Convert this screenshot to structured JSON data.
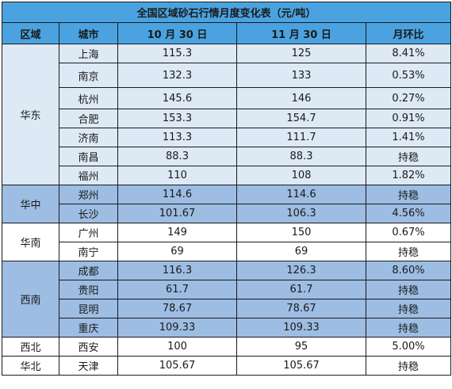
{
  "title": "全国区域砂石行情月度变化表（元/吨）",
  "headers": [
    "区域",
    "城市",
    "10 月 30 日",
    "11 月 30 日",
    "月环比"
  ],
  "regions": [
    {
      "name": "华东",
      "rows": [
        {
          "city": "上海",
          "oct": "115.3",
          "nov": "125",
          "change": "8.41%",
          "trend": "up"
        },
        {
          "city": "南京",
          "oct": "132.3",
          "nov": "133",
          "change": "0.53%",
          "trend": "up"
        },
        {
          "city": "杭州",
          "oct": "145.6",
          "nov": "146",
          "change": "0.27%",
          "trend": "up"
        },
        {
          "city": "合肥",
          "oct": "153.3",
          "nov": "154.7",
          "change": "0.91%",
          "trend": "up"
        },
        {
          "city": "济南",
          "oct": "113.3",
          "nov": "111.7",
          "change": "1.41%",
          "trend": "down"
        },
        {
          "city": "南昌",
          "oct": "88.3",
          "nov": "88.3",
          "change": "持稳",
          "trend": "flat"
        },
        {
          "city": "福州",
          "oct": "110",
          "nov": "108",
          "change": "1.82%",
          "trend": "down"
        }
      ]
    },
    {
      "name": "华中",
      "rows": [
        {
          "city": "郑州",
          "oct": "114.6",
          "nov": "114.6",
          "change": "持稳",
          "trend": "flat"
        },
        {
          "city": "长沙",
          "oct": "101.67",
          "nov": "106.3",
          "change": "4.56%",
          "trend": "up"
        }
      ]
    },
    {
      "name": "华南",
      "rows": [
        {
          "city": "广州",
          "oct": "149",
          "nov": "150",
          "change": "0.67%",
          "trend": "up"
        },
        {
          "city": "南宁",
          "oct": "69",
          "nov": "69",
          "change": "持稳",
          "trend": "flat"
        }
      ]
    },
    {
      "name": "西南",
      "rows": [
        {
          "city": "成都",
          "oct": "116.3",
          "nov": "126.3",
          "change": "8.60%",
          "trend": "up"
        },
        {
          "city": "贵阳",
          "oct": "61.7",
          "nov": "61.7",
          "change": "持稳",
          "trend": "flat"
        },
        {
          "city": "昆明",
          "oct": "78.67",
          "nov": "78.67",
          "change": "持稳",
          "trend": "flat"
        },
        {
          "city": "重庆",
          "oct": "109.33",
          "nov": "109.33",
          "change": "持稳",
          "trend": "flat"
        }
      ]
    },
    {
      "name": "西北",
      "rows": [
        {
          "city": "西安",
          "oct": "100",
          "nov": "95",
          "change": "5.00%",
          "trend": "down"
        }
      ]
    },
    {
      "name": "华北",
      "rows": [
        {
          "city": "天津",
          "oct": "105.67",
          "nov": "105.67",
          "change": "持稳",
          "trend": "flat"
        }
      ]
    }
  ],
  "colors": {
    "header_bg": "#4aa3e0",
    "header_text": "#ffffff",
    "row_light": "#dde9f5",
    "row_dark": "#9dbde3",
    "row_white": "#ffffff",
    "up": "#e8161b",
    "down": "#16a33a"
  }
}
